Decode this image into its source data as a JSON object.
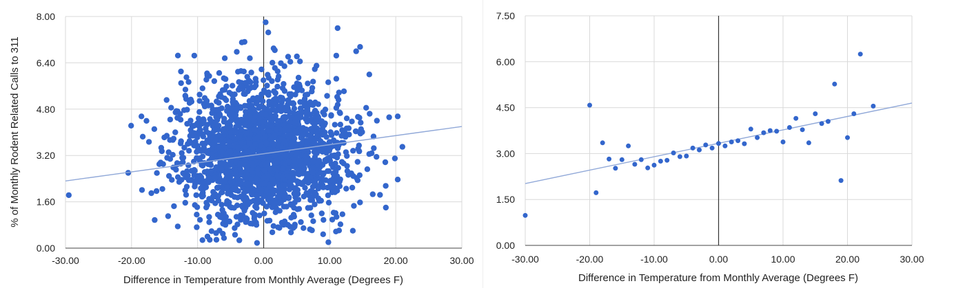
{
  "chart_data": [
    {
      "type": "scatter",
      "title": "",
      "xlabel": "Difference in Temperature from Monthly Average (Degrees F)",
      "ylabel": "% of Monthly Rodent Related Calls to 311",
      "xlim": [
        -30,
        30
      ],
      "ylim": [
        0,
        8
      ],
      "x_ticks": [
        "-30.00",
        "-20.00",
        "-10.00",
        "0.00",
        "10.00",
        "20.00",
        "30.00"
      ],
      "y_ticks": [
        "0.00",
        "1.60",
        "3.20",
        "4.80",
        "6.40",
        "8.00"
      ],
      "grid": true,
      "legend": "none",
      "point_color": "#3366cc",
      "trendline": {
        "x": [
          -30,
          30
        ],
        "y": [
          2.32,
          4.2
        ],
        "color": "#90a8d8"
      },
      "cloud": {
        "n": 2100,
        "x_mean": 0,
        "x_sd": 6.3,
        "y_mean": 3.3,
        "y_sd": 1.15,
        "x_range": [
          -22,
          22
        ],
        "y_range": [
          0.2,
          7.8
        ],
        "seed": 7
      },
      "points": [
        [
          -29.5,
          1.83
        ],
        [
          -20.5,
          2.6
        ],
        [
          -18.5,
          4.55
        ],
        [
          -18.3,
          3.85
        ],
        [
          -16.5,
          0.97
        ],
        [
          -14,
          4.85
        ],
        [
          -12.5,
          5.7
        ],
        [
          -10.5,
          6.65
        ],
        [
          -7.2,
          0.52
        ],
        [
          -6,
          0.35
        ],
        [
          -1,
          0.18
        ],
        [
          0.3,
          7.8
        ],
        [
          0.7,
          7.45
        ],
        [
          1.5,
          6.9
        ],
        [
          11.2,
          7.6
        ],
        [
          11,
          6.65
        ],
        [
          14,
          6.8
        ],
        [
          14.6,
          6.95
        ],
        [
          16,
          6.0
        ],
        [
          19,
          4.52
        ],
        [
          20.3,
          4.55
        ],
        [
          21,
          3.5
        ],
        [
          20.3,
          2.37
        ],
        [
          18.5,
          1.4
        ],
        [
          13.5,
          0.6
        ],
        [
          9,
          0.48
        ],
        [
          4.5,
          0.7
        ],
        [
          -2,
          0.85
        ],
        [
          -8.5,
          0.4
        ],
        [
          -13,
          0.75
        ],
        [
          -15.8,
          2.9
        ],
        [
          -17,
          1.9
        ],
        [
          5.5,
          6.45
        ],
        [
          -3,
          6.1
        ],
        [
          8,
          6.3
        ]
      ]
    },
    {
      "type": "scatter",
      "title": "",
      "xlabel": "Difference in Temperature from Monthly Average (Degrees F)",
      "ylabel": "",
      "xlim": [
        -30,
        30
      ],
      "ylim": [
        0,
        7.5
      ],
      "x_ticks": [
        "-30.00",
        "-20.00",
        "-10.00",
        "0.00",
        "10.00",
        "20.00",
        "30.00"
      ],
      "y_ticks": [
        "0.00",
        "1.50",
        "3.00",
        "4.50",
        "6.00",
        "7.50"
      ],
      "grid": true,
      "legend": "none",
      "point_color": "#3366cc",
      "trendline": {
        "x": [
          -30,
          30
        ],
        "y": [
          2.02,
          4.65
        ],
        "color": "#90a8d8"
      },
      "points": [
        [
          -30,
          0.98
        ],
        [
          -20,
          4.58
        ],
        [
          -19,
          1.72
        ],
        [
          -18,
          3.35
        ],
        [
          -17,
          2.82
        ],
        [
          -16,
          2.52
        ],
        [
          -15,
          2.8
        ],
        [
          -14,
          3.25
        ],
        [
          -13,
          2.65
        ],
        [
          -12,
          2.8
        ],
        [
          -11,
          2.53
        ],
        [
          -10,
          2.62
        ],
        [
          -9,
          2.75
        ],
        [
          -8,
          2.78
        ],
        [
          -7,
          3.02
        ],
        [
          -6,
          2.9
        ],
        [
          -5,
          2.92
        ],
        [
          -4,
          3.18
        ],
        [
          -3,
          3.12
        ],
        [
          -2,
          3.28
        ],
        [
          -1,
          3.18
        ],
        [
          0,
          3.33
        ],
        [
          1,
          3.25
        ],
        [
          2,
          3.38
        ],
        [
          3,
          3.42
        ],
        [
          4,
          3.32
        ],
        [
          5,
          3.8
        ],
        [
          6,
          3.52
        ],
        [
          7,
          3.68
        ],
        [
          8,
          3.75
        ],
        [
          9,
          3.73
        ],
        [
          10,
          3.38
        ],
        [
          11,
          3.85
        ],
        [
          12,
          4.15
        ],
        [
          13,
          3.78
        ],
        [
          14,
          3.35
        ],
        [
          15,
          4.3
        ],
        [
          16,
          3.98
        ],
        [
          17,
          4.05
        ],
        [
          18,
          5.27
        ],
        [
          19,
          2.12
        ],
        [
          20,
          3.52
        ],
        [
          21,
          4.3
        ],
        [
          22,
          6.25
        ],
        [
          24,
          4.55
        ]
      ]
    }
  ]
}
